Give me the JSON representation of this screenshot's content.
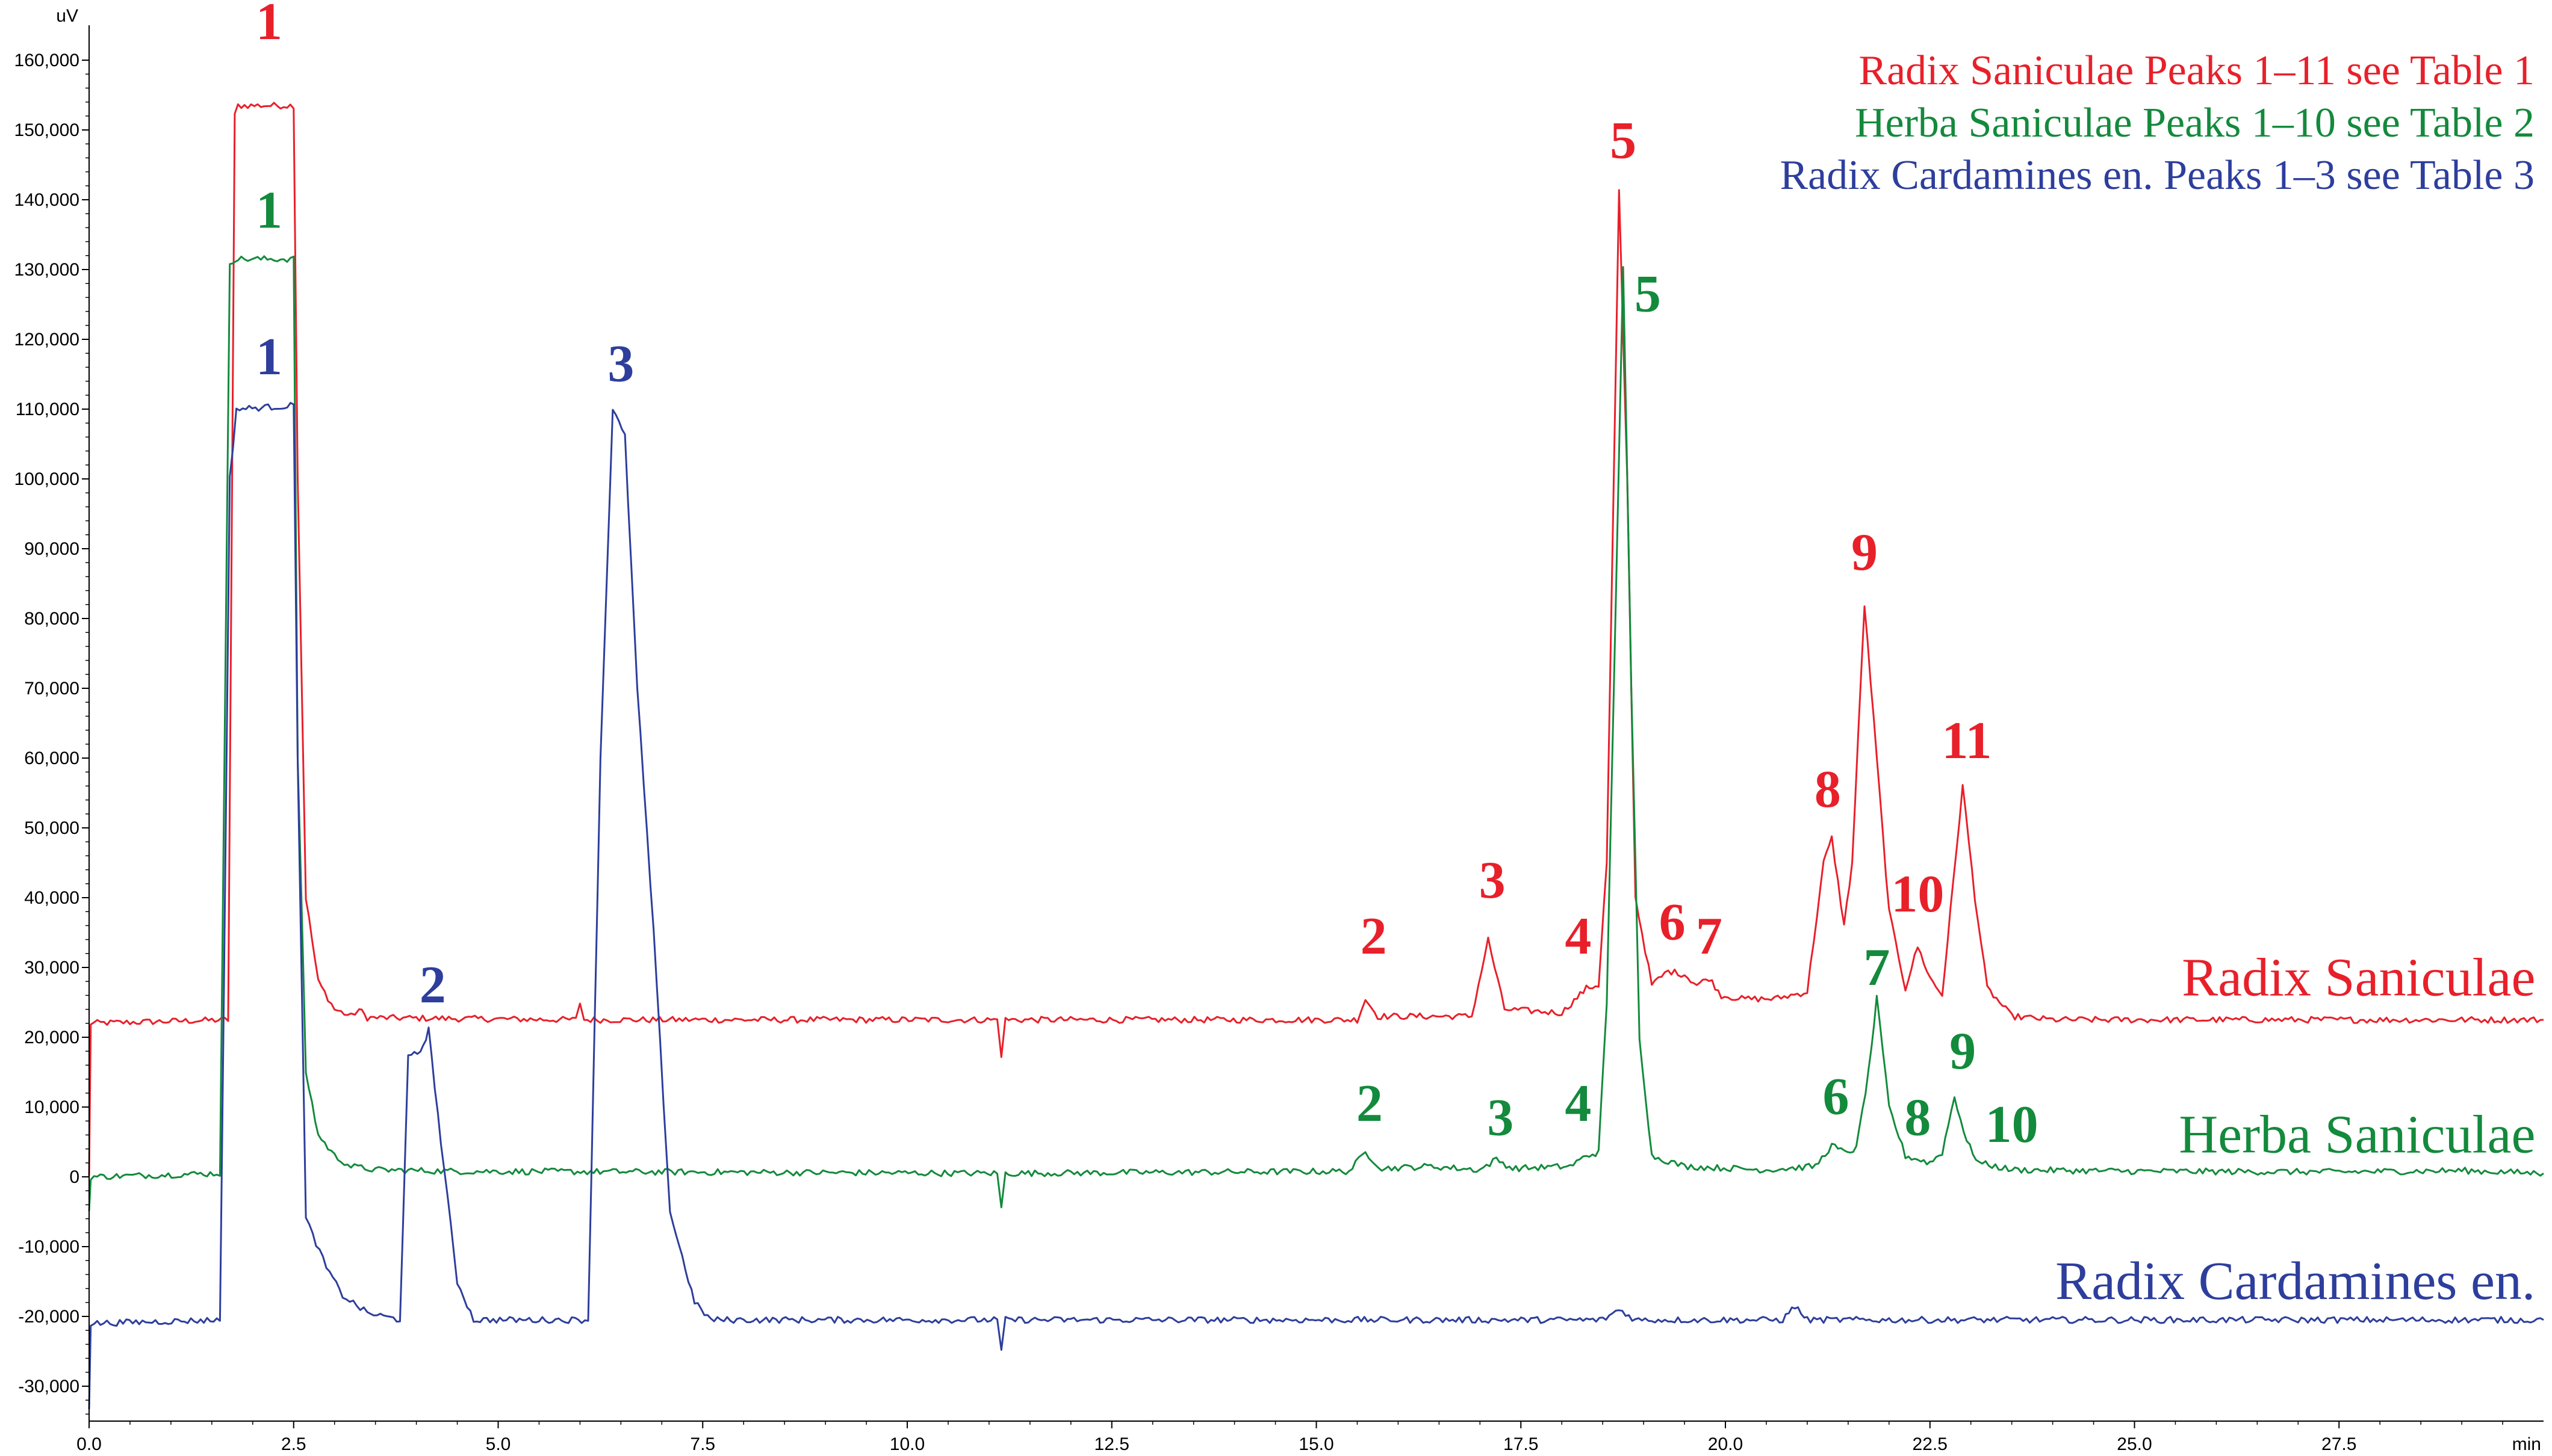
{
  "chart_data": {
    "type": "line",
    "x_unit": "min",
    "y_unit": "uV",
    "xlim": [
      0,
      30
    ],
    "ylim": [
      -35000,
      165000
    ],
    "x_ticks": [
      "0.0",
      "2.5",
      "5.0",
      "7.5",
      "10.0",
      "12.5",
      "15.0",
      "17.5",
      "20.0",
      "22.5",
      "25.0",
      "27.5"
    ],
    "y_ticks": [
      "160,000",
      "150,000",
      "140,000",
      "130,000",
      "120,000",
      "110,000",
      "100,000",
      "90,000",
      "80,000",
      "70,000",
      "60,000",
      "50,000",
      "40,000",
      "30,000",
      "20,000",
      "10,000",
      "0",
      "-10,000",
      "-20,000",
      "-30,000"
    ],
    "legend": [
      "Radix Saniculae Peaks 1–11 see Table 1",
      "Herba Saniculae Peaks 1–10 see Table 2",
      "Radix Cardamines en. Peaks 1–3 see Table 3"
    ],
    "series": [
      {
        "name": "Radix Saniculae",
        "color": "#e8202a",
        "baseline": 22500,
        "points": [
          [
            0,
            0
          ],
          [
            0.02,
            22000
          ],
          [
            1.7,
            22500
          ],
          [
            1.78,
            152000
          ],
          [
            1.82,
            153500
          ],
          [
            2.5,
            153500
          ],
          [
            2.55,
            100000
          ],
          [
            2.65,
            40000
          ],
          [
            2.8,
            28000
          ],
          [
            3.0,
            24000
          ],
          [
            3.2,
            23000
          ],
          [
            3.3,
            24000
          ],
          [
            3.4,
            22800
          ],
          [
            5.95,
            22500
          ],
          [
            6.0,
            25000
          ],
          [
            6.05,
            22500
          ],
          [
            11.1,
            22500
          ],
          [
            11.15,
            17500
          ],
          [
            11.2,
            22500
          ],
          [
            15.5,
            22500
          ],
          [
            15.6,
            25500
          ],
          [
            15.75,
            23000
          ],
          [
            16.9,
            23000
          ],
          [
            17.1,
            34000
          ],
          [
            17.3,
            24000
          ],
          [
            18.0,
            23500
          ],
          [
            18.3,
            27000
          ],
          [
            18.45,
            27500
          ],
          [
            18.55,
            45000
          ],
          [
            18.7,
            141000
          ],
          [
            18.8,
            100000
          ],
          [
            18.9,
            40000
          ],
          [
            19.1,
            27500
          ],
          [
            19.3,
            29500
          ],
          [
            19.5,
            29000
          ],
          [
            19.65,
            27500
          ],
          [
            19.8,
            28500
          ],
          [
            19.95,
            26000
          ],
          [
            20.2,
            25500
          ],
          [
            20.6,
            25500
          ],
          [
            21.0,
            26500
          ],
          [
            21.2,
            45000
          ],
          [
            21.3,
            48500
          ],
          [
            21.45,
            36000
          ],
          [
            21.55,
            45000
          ],
          [
            21.7,
            82000
          ],
          [
            21.85,
            60000
          ],
          [
            22.0,
            38000
          ],
          [
            22.2,
            27000
          ],
          [
            22.35,
            33000
          ],
          [
            22.5,
            28500
          ],
          [
            22.65,
            26000
          ],
          [
            22.75,
            38000
          ],
          [
            22.9,
            56000
          ],
          [
            23.05,
            40000
          ],
          [
            23.2,
            27000
          ],
          [
            23.5,
            23000
          ],
          [
            24.0,
            22500
          ],
          [
            25.0,
            22500
          ],
          [
            27.0,
            22500
          ],
          [
            30,
            22500
          ]
        ]
      },
      {
        "name": "Herba Saniculae",
        "color": "#138a3c",
        "baseline": 500,
        "points": [
          [
            0,
            -5000
          ],
          [
            0.02,
            0
          ],
          [
            1.6,
            500
          ],
          [
            1.72,
            131000
          ],
          [
            1.78,
            131500
          ],
          [
            2.5,
            131500
          ],
          [
            2.55,
            60000
          ],
          [
            2.65,
            15000
          ],
          [
            2.8,
            6000
          ],
          [
            3.0,
            3000
          ],
          [
            3.2,
            1500
          ],
          [
            3.5,
            1000
          ],
          [
            4.5,
            800
          ],
          [
            7.0,
            700
          ],
          [
            11.1,
            500
          ],
          [
            11.15,
            -4500
          ],
          [
            11.2,
            500
          ],
          [
            15.4,
            800
          ],
          [
            15.6,
            3500
          ],
          [
            15.8,
            1200
          ],
          [
            16.4,
            1500
          ],
          [
            17.0,
            1000
          ],
          [
            17.2,
            2500
          ],
          [
            17.4,
            1200
          ],
          [
            18.1,
            1500
          ],
          [
            18.3,
            3000
          ],
          [
            18.45,
            3500
          ],
          [
            18.55,
            25000
          ],
          [
            18.75,
            130000
          ],
          [
            18.85,
            70000
          ],
          [
            18.95,
            20000
          ],
          [
            19.1,
            3000
          ],
          [
            19.5,
            1500
          ],
          [
            20.5,
            1000
          ],
          [
            21.1,
            1500
          ],
          [
            21.3,
            4500
          ],
          [
            21.45,
            3500
          ],
          [
            21.6,
            4000
          ],
          [
            21.75,
            15000
          ],
          [
            21.85,
            25500
          ],
          [
            22.0,
            10000
          ],
          [
            22.2,
            3000
          ],
          [
            22.35,
            2500
          ],
          [
            22.5,
            2000
          ],
          [
            22.65,
            3500
          ],
          [
            22.8,
            11500
          ],
          [
            22.95,
            5000
          ],
          [
            23.1,
            2000
          ],
          [
            23.5,
            1000
          ],
          [
            25.0,
            800
          ],
          [
            27.5,
            700
          ],
          [
            29.0,
            900
          ],
          [
            30,
            500
          ]
        ]
      },
      {
        "name": "Radix Cardamines en.",
        "color": "#2d3e9c",
        "baseline": -20500,
        "points": [
          [
            0,
            -33000
          ],
          [
            0.02,
            -21000
          ],
          [
            1.6,
            -20500
          ],
          [
            1.72,
            100000
          ],
          [
            1.8,
            110000
          ],
          [
            2.5,
            110500
          ],
          [
            2.55,
            60000
          ],
          [
            2.65,
            -6000
          ],
          [
            2.9,
            -13000
          ],
          [
            3.1,
            -17000
          ],
          [
            3.4,
            -19500
          ],
          [
            3.8,
            -20500
          ],
          [
            3.9,
            17000
          ],
          [
            4.05,
            18000
          ],
          [
            4.15,
            21000
          ],
          [
            4.3,
            5000
          ],
          [
            4.5,
            -15000
          ],
          [
            4.7,
            -20500
          ],
          [
            6.1,
            -20500
          ],
          [
            6.25,
            60000
          ],
          [
            6.4,
            110000
          ],
          [
            6.55,
            106000
          ],
          [
            6.7,
            70000
          ],
          [
            6.9,
            35000
          ],
          [
            7.1,
            -5000
          ],
          [
            7.4,
            -18000
          ],
          [
            7.6,
            -20500
          ],
          [
            11.1,
            -20500
          ],
          [
            11.15,
            -25000
          ],
          [
            11.2,
            -20500
          ],
          [
            18.5,
            -20500
          ],
          [
            18.7,
            -19000
          ],
          [
            18.9,
            -20500
          ],
          [
            20.7,
            -20500
          ],
          [
            20.85,
            -18500
          ],
          [
            21.0,
            -20500
          ],
          [
            30,
            -20500
          ]
        ]
      }
    ],
    "peak_labels": [
      {
        "text": "1",
        "series": 0,
        "x": 2.2,
        "y": 163000
      },
      {
        "text": "2",
        "series": 0,
        "x": 15.7,
        "y": 32000
      },
      {
        "text": "3",
        "series": 0,
        "x": 17.15,
        "y": 40000
      },
      {
        "text": "4",
        "series": 0,
        "x": 18.2,
        "y": 32000
      },
      {
        "text": "5",
        "series": 0,
        "x": 18.75,
        "y": 146000
      },
      {
        "text": "6",
        "series": 0,
        "x": 19.35,
        "y": 34000
      },
      {
        "text": "7",
        "series": 0,
        "x": 19.8,
        "y": 32000
      },
      {
        "text": "8",
        "series": 0,
        "x": 21.25,
        "y": 53000
      },
      {
        "text": "9",
        "series": 0,
        "x": 21.7,
        "y": 87000
      },
      {
        "text": "10",
        "series": 0,
        "x": 22.35,
        "y": 38000
      },
      {
        "text": "11",
        "series": 0,
        "x": 22.95,
        "y": 60000
      },
      {
        "text": "1",
        "series": 1,
        "x": 2.2,
        "y": 136000
      },
      {
        "text": "2",
        "series": 1,
        "x": 15.65,
        "y": 8000
      },
      {
        "text": "3",
        "series": 1,
        "x": 17.25,
        "y": 6000
      },
      {
        "text": "4",
        "series": 1,
        "x": 18.2,
        "y": 8000
      },
      {
        "text": "5",
        "series": 1,
        "x": 19.05,
        "y": 124000
      },
      {
        "text": "6",
        "series": 1,
        "x": 21.35,
        "y": 9000
      },
      {
        "text": "7",
        "series": 1,
        "x": 21.85,
        "y": 27500
      },
      {
        "text": "8",
        "series": 1,
        "x": 22.35,
        "y": 6000
      },
      {
        "text": "9",
        "series": 1,
        "x": 22.9,
        "y": 15500
      },
      {
        "text": "10",
        "series": 1,
        "x": 23.5,
        "y": 5000
      },
      {
        "text": "1",
        "series": 2,
        "x": 2.2,
        "y": 115000
      },
      {
        "text": "2",
        "series": 2,
        "x": 4.2,
        "y": 25000
      },
      {
        "text": "3",
        "series": 2,
        "x": 6.5,
        "y": 114000
      }
    ],
    "trace_labels": [
      {
        "text": "Radix Saniculae",
        "series": 0,
        "x": 29.9,
        "y": 26000
      },
      {
        "text": "Herba Saniculae",
        "series": 1,
        "x": 29.9,
        "y": 3500
      },
      {
        "text": "Radix Cardamines en.",
        "series": 2,
        "x": 29.9,
        "y": -17500
      }
    ]
  }
}
